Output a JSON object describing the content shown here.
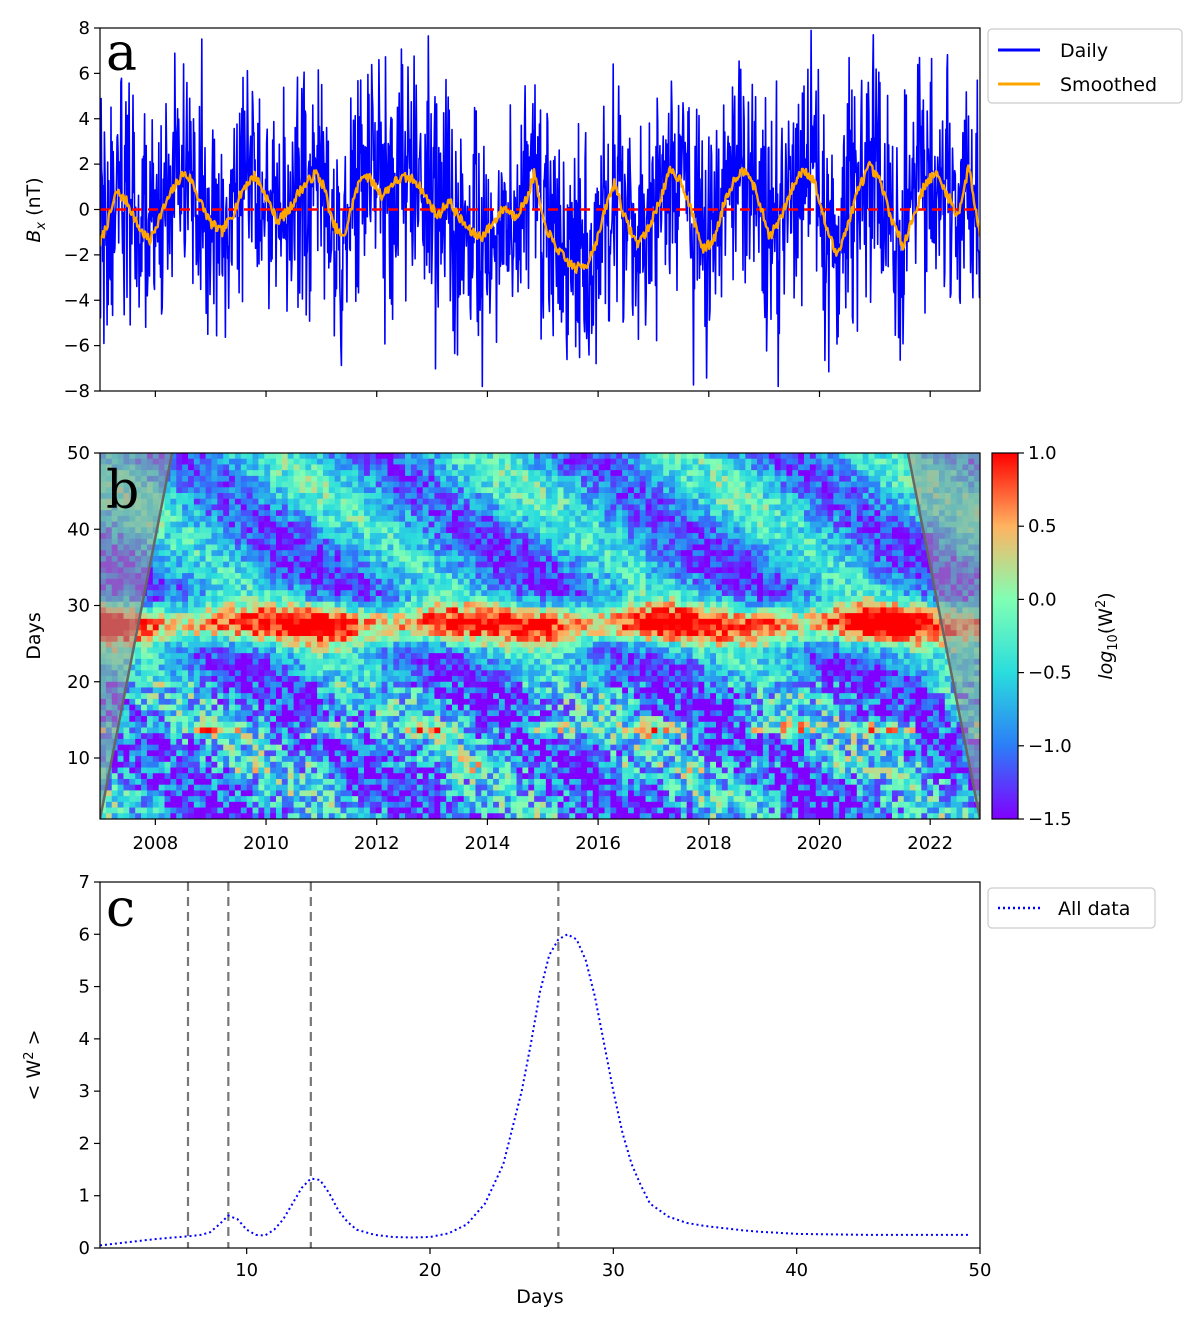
{
  "chart_data": [
    {
      "panel": "a",
      "type": "line",
      "panel_label": "a",
      "ylabel": "B_x (nT)",
      "ylabel_main": "B",
      "ylabel_sub": "x",
      "ylabel_unit": " (nT)",
      "xlim": [
        2007.0,
        2022.9
      ],
      "ylim": [
        -8,
        8
      ],
      "yticks": [
        -8,
        -6,
        -4,
        -2,
        0,
        2,
        4,
        6,
        8
      ],
      "yticklabels": [
        "−8",
        "−6",
        "−4",
        "−2",
        "0",
        "2",
        "4",
        "6",
        "8"
      ],
      "xticks": [
        2008,
        2010,
        2012,
        2014,
        2016,
        2018,
        2020,
        2022
      ],
      "grid": false,
      "legend_position": "outside-right-top",
      "zero_line": {
        "y": 0,
        "color": "#ff0000",
        "style": "dashed"
      },
      "series": [
        {
          "name": "Daily",
          "color": "#0000ff",
          "description_amplitude_nT": 3.2
        },
        {
          "name": "Smoothed",
          "color": "#ffa500",
          "x": [
            2007.0,
            2007.15,
            2007.3,
            2007.5,
            2007.7,
            2007.9,
            2008.1,
            2008.3,
            2008.5,
            2008.65,
            2008.8,
            2009.0,
            2009.2,
            2009.4,
            2009.6,
            2009.8,
            2010.0,
            2010.2,
            2010.4,
            2010.6,
            2010.75,
            2010.9,
            2011.05,
            2011.2,
            2011.4,
            2011.6,
            2011.75,
            2011.9,
            2012.1,
            2012.3,
            2012.5,
            2012.7,
            2012.9,
            2013.1,
            2013.3,
            2013.5,
            2013.7,
            2013.9,
            2014.1,
            2014.3,
            2014.5,
            2014.7,
            2014.85,
            2015.0,
            2015.2,
            2015.4,
            2015.6,
            2015.8,
            2016.0,
            2016.15,
            2016.3,
            2016.5,
            2016.7,
            2016.9,
            2017.1,
            2017.3,
            2017.5,
            2017.7,
            2017.9,
            2018.1,
            2018.3,
            2018.5,
            2018.7,
            2018.9,
            2019.1,
            2019.3,
            2019.5,
            2019.7,
            2019.9,
            2020.1,
            2020.3,
            2020.5,
            2020.7,
            2020.9,
            2021.1,
            2021.3,
            2021.5,
            2021.7,
            2021.9,
            2022.1,
            2022.3,
            2022.5,
            2022.7,
            2022.9
          ],
          "y": [
            -1.5,
            -0.5,
            0.8,
            0.3,
            -0.8,
            -1.4,
            -0.2,
            0.8,
            1.6,
            1.3,
            0.4,
            -0.6,
            -1.0,
            -0.2,
            1.0,
            1.5,
            0.6,
            -0.5,
            -0.1,
            0.8,
            1.2,
            1.6,
            1.0,
            -0.6,
            -1.3,
            0.6,
            1.6,
            1.3,
            0.6,
            1.2,
            1.4,
            1.3,
            0.5,
            -0.3,
            0.4,
            -0.4,
            -1.0,
            -1.2,
            -0.6,
            0.1,
            -0.3,
            0.4,
            1.6,
            -0.5,
            -1.5,
            -2.2,
            -2.6,
            -2.4,
            -1.2,
            0.2,
            1.2,
            -0.5,
            -1.5,
            -0.9,
            0.3,
            1.7,
            1.3,
            -0.2,
            -1.8,
            -1.3,
            0.5,
            1.5,
            1.8,
            0.4,
            -1.2,
            -0.4,
            0.9,
            1.8,
            1.3,
            -0.6,
            -2.0,
            -0.8,
            0.9,
            1.9,
            1.2,
            -0.4,
            -1.6,
            -0.3,
            1.1,
            1.6,
            0.7,
            -0.3,
            1.9,
            -1.2
          ]
        }
      ]
    },
    {
      "panel": "b",
      "type": "heatmap",
      "panel_label": "b",
      "ylabel": "Days",
      "ylim": [
        2,
        50
      ],
      "yticks": [
        10,
        20,
        30,
        40,
        50
      ],
      "xlim": [
        2007.0,
        2022.9
      ],
      "xticks": [
        2008,
        2010,
        2012,
        2014,
        2016,
        2018,
        2020,
        2022
      ],
      "xticklabels": [
        "2008",
        "2010",
        "2012",
        "2014",
        "2016",
        "2018",
        "2020",
        "2022"
      ],
      "colorbar": {
        "label": "log10(W^2)",
        "label_main": "log",
        "label_sub": "10",
        "label_tail": "(W",
        "label_sup": "2",
        "label_end": ")",
        "range": [
          -1.5,
          1.0
        ],
        "ticks": [
          -1.5,
          -1.0,
          -0.5,
          0.0,
          0.5,
          1.0
        ],
        "ticklabels": [
          "−1.5",
          "−1.0",
          "−0.5",
          "0.0",
          "0.5",
          "1.0"
        ],
        "colormap": "rainbow"
      },
      "bands": [
        {
          "period_days": 27.5,
          "level": "high"
        },
        {
          "period_days": 13.8,
          "level": "intermittent"
        },
        {
          "period_days": 9.0,
          "level": "weak"
        }
      ],
      "cone_of_influence": true
    },
    {
      "panel": "c",
      "type": "line",
      "panel_label": "c",
      "xlabel": "Days",
      "ylabel": "<W^2>",
      "ylabel_main": "< W",
      "ylabel_sup": "2",
      "ylabel_end": " >",
      "xlim": [
        2,
        50
      ],
      "ylim": [
        0,
        7
      ],
      "xticks": [
        10,
        20,
        30,
        40,
        50
      ],
      "yticks": [
        0,
        1,
        2,
        3,
        4,
        5,
        6,
        7
      ],
      "grid": false,
      "legend_position": "outside-right-top",
      "vlines": [
        6.8,
        9.0,
        13.5,
        27.0
      ],
      "series": [
        {
          "name": "All data",
          "color": "#0000ff",
          "style": "dotted",
          "x": [
            2,
            3,
            4,
            5,
            6,
            7,
            7.5,
            8,
            8.5,
            9,
            9.5,
            10,
            10.5,
            11,
            11.5,
            12,
            12.5,
            13,
            13.5,
            14,
            14.5,
            15,
            15.5,
            16,
            17,
            18,
            19,
            20,
            21,
            22,
            23,
            24,
            25,
            25.5,
            26,
            26.5,
            27,
            27.5,
            28,
            28.5,
            29,
            29.5,
            30,
            30.5,
            31,
            31.5,
            32,
            33,
            34,
            35,
            36,
            37,
            38,
            39,
            40,
            42,
            44,
            46,
            48,
            49.5
          ],
          "y": [
            0.05,
            0.09,
            0.13,
            0.17,
            0.2,
            0.23,
            0.25,
            0.3,
            0.45,
            0.62,
            0.55,
            0.35,
            0.25,
            0.24,
            0.35,
            0.55,
            0.85,
            1.15,
            1.33,
            1.3,
            1.05,
            0.72,
            0.5,
            0.35,
            0.25,
            0.21,
            0.2,
            0.21,
            0.28,
            0.45,
            0.85,
            1.6,
            3.0,
            3.9,
            4.9,
            5.6,
            5.9,
            6.0,
            5.9,
            5.5,
            4.8,
            3.9,
            3.0,
            2.2,
            1.6,
            1.2,
            0.85,
            0.6,
            0.48,
            0.42,
            0.38,
            0.34,
            0.31,
            0.29,
            0.27,
            0.26,
            0.25,
            0.25,
            0.25,
            0.25
          ]
        }
      ]
    }
  ]
}
